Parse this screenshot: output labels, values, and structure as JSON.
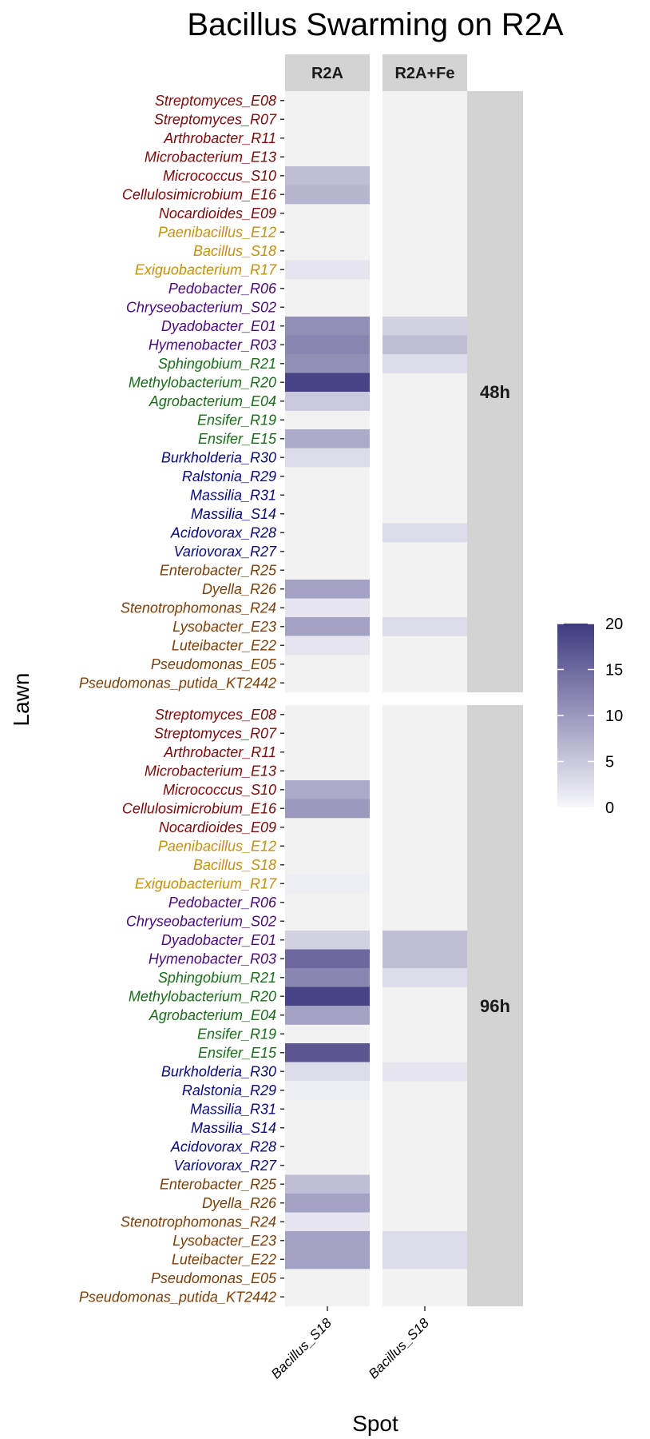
{
  "chart_data": {
    "type": "heatmap",
    "title": "Bacillus Swarming on R2A",
    "xlabel": "Spot",
    "ylabel": "Lawn",
    "columns": [
      "R2A",
      "R2A+Fe"
    ],
    "x_tick_labels": [
      "Bacillus_S18",
      "Bacillus_S18"
    ],
    "rows_facets": [
      "48h",
      "96h"
    ],
    "lawns": [
      {
        "name": "Streptomyces_E08",
        "color": "#7b0a0a"
      },
      {
        "name": "Streptomyces_R07",
        "color": "#7b0a0a"
      },
      {
        "name": "Arthrobacter_R11",
        "color": "#7b0a0a"
      },
      {
        "name": "Microbacterium_E13",
        "color": "#7b0a0a"
      },
      {
        "name": "Micrococcus_S10",
        "color": "#7b0a0a"
      },
      {
        "name": "Cellulosimicrobium_E16",
        "color": "#7b0a0a"
      },
      {
        "name": "Nocardioides_E09",
        "color": "#7b0a0a"
      },
      {
        "name": "Paenibacillus_E12",
        "color": "#c48f0c"
      },
      {
        "name": "Bacillus_S18",
        "color": "#c48f0c"
      },
      {
        "name": "Exiguobacterium_R17",
        "color": "#c48f0c"
      },
      {
        "name": "Pedobacter_R06",
        "color": "#4a0a7b"
      },
      {
        "name": "Chryseobacterium_S02",
        "color": "#4a0a7b"
      },
      {
        "name": "Dyadobacter_E01",
        "color": "#4a0a7b"
      },
      {
        "name": "Hymenobacter_R03",
        "color": "#4a0a7b"
      },
      {
        "name": "Sphingobium_R21",
        "color": "#1a6b1a"
      },
      {
        "name": "Methylobacterium_R20",
        "color": "#1a6b1a"
      },
      {
        "name": "Agrobacterium_E04",
        "color": "#1a6b1a"
      },
      {
        "name": "Ensifer_R19",
        "color": "#1a6b1a"
      },
      {
        "name": "Ensifer_E15",
        "color": "#1a6b1a"
      },
      {
        "name": "Burkholderia_R30",
        "color": "#0a0a7b"
      },
      {
        "name": "Ralstonia_R29",
        "color": "#0a0a7b"
      },
      {
        "name": "Massilia_R31",
        "color": "#0a0a7b"
      },
      {
        "name": "Massilia_S14",
        "color": "#0a0a7b"
      },
      {
        "name": "Acidovorax_R28",
        "color": "#0a0a7b"
      },
      {
        "name": "Variovorax_R27",
        "color": "#0a0a7b"
      },
      {
        "name": "Enterobacter_R25",
        "color": "#7b400a"
      },
      {
        "name": "Dyella_R26",
        "color": "#7b400a"
      },
      {
        "name": "Stenotrophomonas_R24",
        "color": "#7b400a"
      },
      {
        "name": "Lysobacter_E23",
        "color": "#7b400a"
      },
      {
        "name": "Luteibacter_E22",
        "color": "#7b400a"
      },
      {
        "name": "Pseudomonas_E05",
        "color": "#7b400a"
      },
      {
        "name": "Pseudomonas_putida_KT2442",
        "color": "#7b400a"
      }
    ],
    "values": {
      "48h": {
        "R2A": [
          0,
          0,
          0,
          0,
          6,
          7,
          0,
          0,
          0,
          2,
          0,
          0,
          11,
          12,
          11,
          19,
          5,
          0,
          8,
          3,
          0,
          0,
          0,
          0,
          0,
          0,
          9,
          2,
          9,
          2,
          0,
          0
        ],
        "R2A+Fe": [
          0,
          0,
          0,
          0,
          0,
          0,
          0,
          0,
          0,
          0,
          0,
          0,
          4,
          6,
          3,
          0,
          0,
          0,
          0,
          0,
          0,
          0,
          0,
          3,
          0,
          0,
          0,
          0,
          3,
          0,
          0,
          0
        ]
      },
      "96h": {
        "R2A": [
          0,
          0,
          0,
          0,
          8,
          10,
          0,
          0,
          0,
          1,
          0,
          0,
          4,
          15,
          12,
          19,
          9,
          0,
          17,
          3,
          1,
          0,
          0,
          0,
          0,
          6,
          9,
          2,
          9,
          9,
          0,
          0
        ],
        "R2A+Fe": [
          0,
          0,
          0,
          0,
          0,
          0,
          0,
          0,
          0,
          0,
          0,
          0,
          6,
          6,
          3,
          0,
          0,
          0,
          0,
          2,
          0,
          0,
          0,
          0,
          0,
          0,
          0,
          0,
          3,
          3,
          0,
          0
        ]
      }
    },
    "legend": {
      "range": [
        0,
        20
      ],
      "ticks": [
        0,
        5,
        10,
        15,
        20
      ],
      "low_color": "#f7f7fb",
      "high_color": "#3f3a80",
      "placement": "right"
    },
    "na_color": "#f2f2f2",
    "strip_color": "#d3d3d3"
  }
}
